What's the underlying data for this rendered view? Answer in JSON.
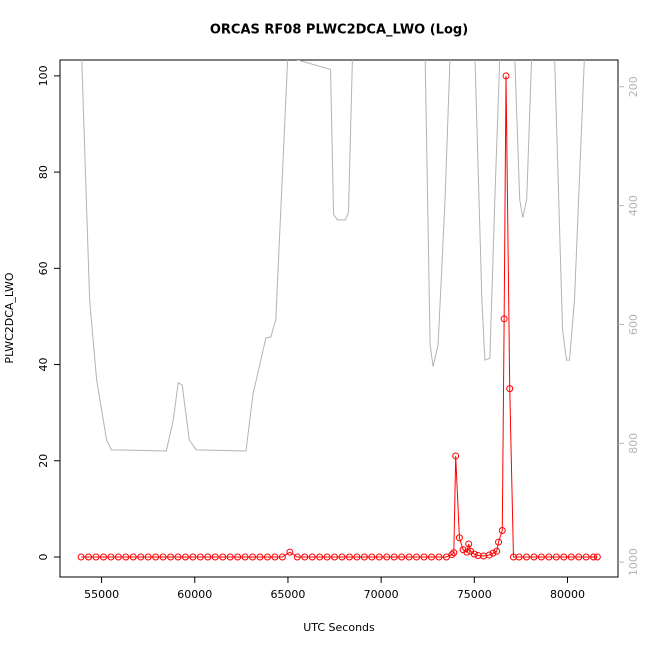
{
  "chart_data": {
    "type": "line",
    "title": "ORCAS RF08 PLWC2DCA_LWO (Log)",
    "x_label": "UTC Seconds",
    "y_label": "PLWC2DCA_LWO",
    "xlim": [
      52769,
      82709
    ],
    "xticks": [
      55000,
      60000,
      65000,
      70000,
      75000,
      80000
    ],
    "ylim": [
      -4.16,
      103.3
    ],
    "yticks": [
      0,
      20,
      40,
      60,
      80,
      100
    ],
    "y2lim": [
      1025,
      155
    ],
    "y2ticks": [
      200,
      400,
      600,
      800,
      1000
    ],
    "series": [
      {
        "color": "#ff0000",
        "markers": true,
        "x": [
          53900,
          54300,
          54700,
          55100,
          55500,
          55900,
          56300,
          56700,
          57100,
          57500,
          57900,
          58300,
          58700,
          59100,
          59500,
          59900,
          60300,
          60700,
          61100,
          61500,
          61900,
          62300,
          62700,
          63100,
          63500,
          63900,
          64300,
          64700,
          65100,
          65500,
          65900,
          66300,
          66700,
          67100,
          67500,
          67900,
          68300,
          68700,
          69100,
          69500,
          69900,
          70300,
          70700,
          71100,
          71500,
          71900,
          72300,
          72700,
          73100,
          73500,
          73800,
          73900,
          74000,
          74200,
          74400,
          74600,
          74700,
          74800,
          75000,
          75200,
          75500,
          75800,
          76000,
          76200,
          76300,
          76500,
          76600,
          76700,
          76900,
          77100,
          77400,
          77800,
          78200,
          78600,
          79000,
          79400,
          79800,
          80200,
          80600,
          81000,
          81400,
          81600
        ],
        "values": [
          0,
          0,
          0,
          0,
          0,
          0,
          0,
          0,
          0,
          0,
          0,
          0,
          0,
          0,
          0,
          0,
          0,
          0,
          0,
          0,
          0,
          0,
          0,
          0,
          0,
          0,
          0,
          0,
          1,
          0,
          0,
          0,
          0,
          0,
          0,
          0,
          0,
          0,
          0,
          0,
          0,
          0,
          0,
          0,
          0,
          0,
          0,
          0,
          0,
          0,
          0.5,
          0.9,
          21,
          4,
          1.5,
          1,
          2.7,
          1.2,
          0.6,
          0.3,
          0.2,
          0.4,
          0.8,
          1.2,
          3.1,
          5.5,
          49.5,
          100,
          35,
          0,
          0,
          0,
          0,
          0,
          0,
          0,
          0,
          0,
          0,
          0,
          0,
          0
        ]
      },
      {
        "color": "#b3b3b3",
        "axis": "y2",
        "markers": false,
        "x": [
          53932,
          54359,
          54733,
          55267,
          55534,
          58472,
          58846,
          59113,
          59327,
          59701,
          60075,
          62746,
          63120,
          63814,
          64081,
          64348,
          64989,
          67286,
          67447,
          67660,
          68088,
          68248,
          68462,
          72361,
          72628,
          72788,
          73056,
          73430,
          73697,
          75032,
          75406,
          75566,
          75833,
          76100,
          76367,
          77168,
          77436,
          77596,
          77809,
          78077,
          79306,
          79733,
          79947,
          80107,
          80374,
          80908,
          81600
        ],
        "values": [
          150,
          559,
          693,
          794,
          811,
          813,
          761,
          698,
          702,
          794,
          811,
          813,
          718,
          623,
          621,
          592,
          150,
          171,
          415,
          424,
          424,
          410,
          150,
          150,
          634,
          671,
          634,
          390,
          150,
          150,
          559,
          660,
          657,
          390,
          150,
          150,
          390,
          420,
          390,
          150,
          150,
          609,
          660,
          660,
          559,
          150,
          150
        ]
      }
    ]
  }
}
